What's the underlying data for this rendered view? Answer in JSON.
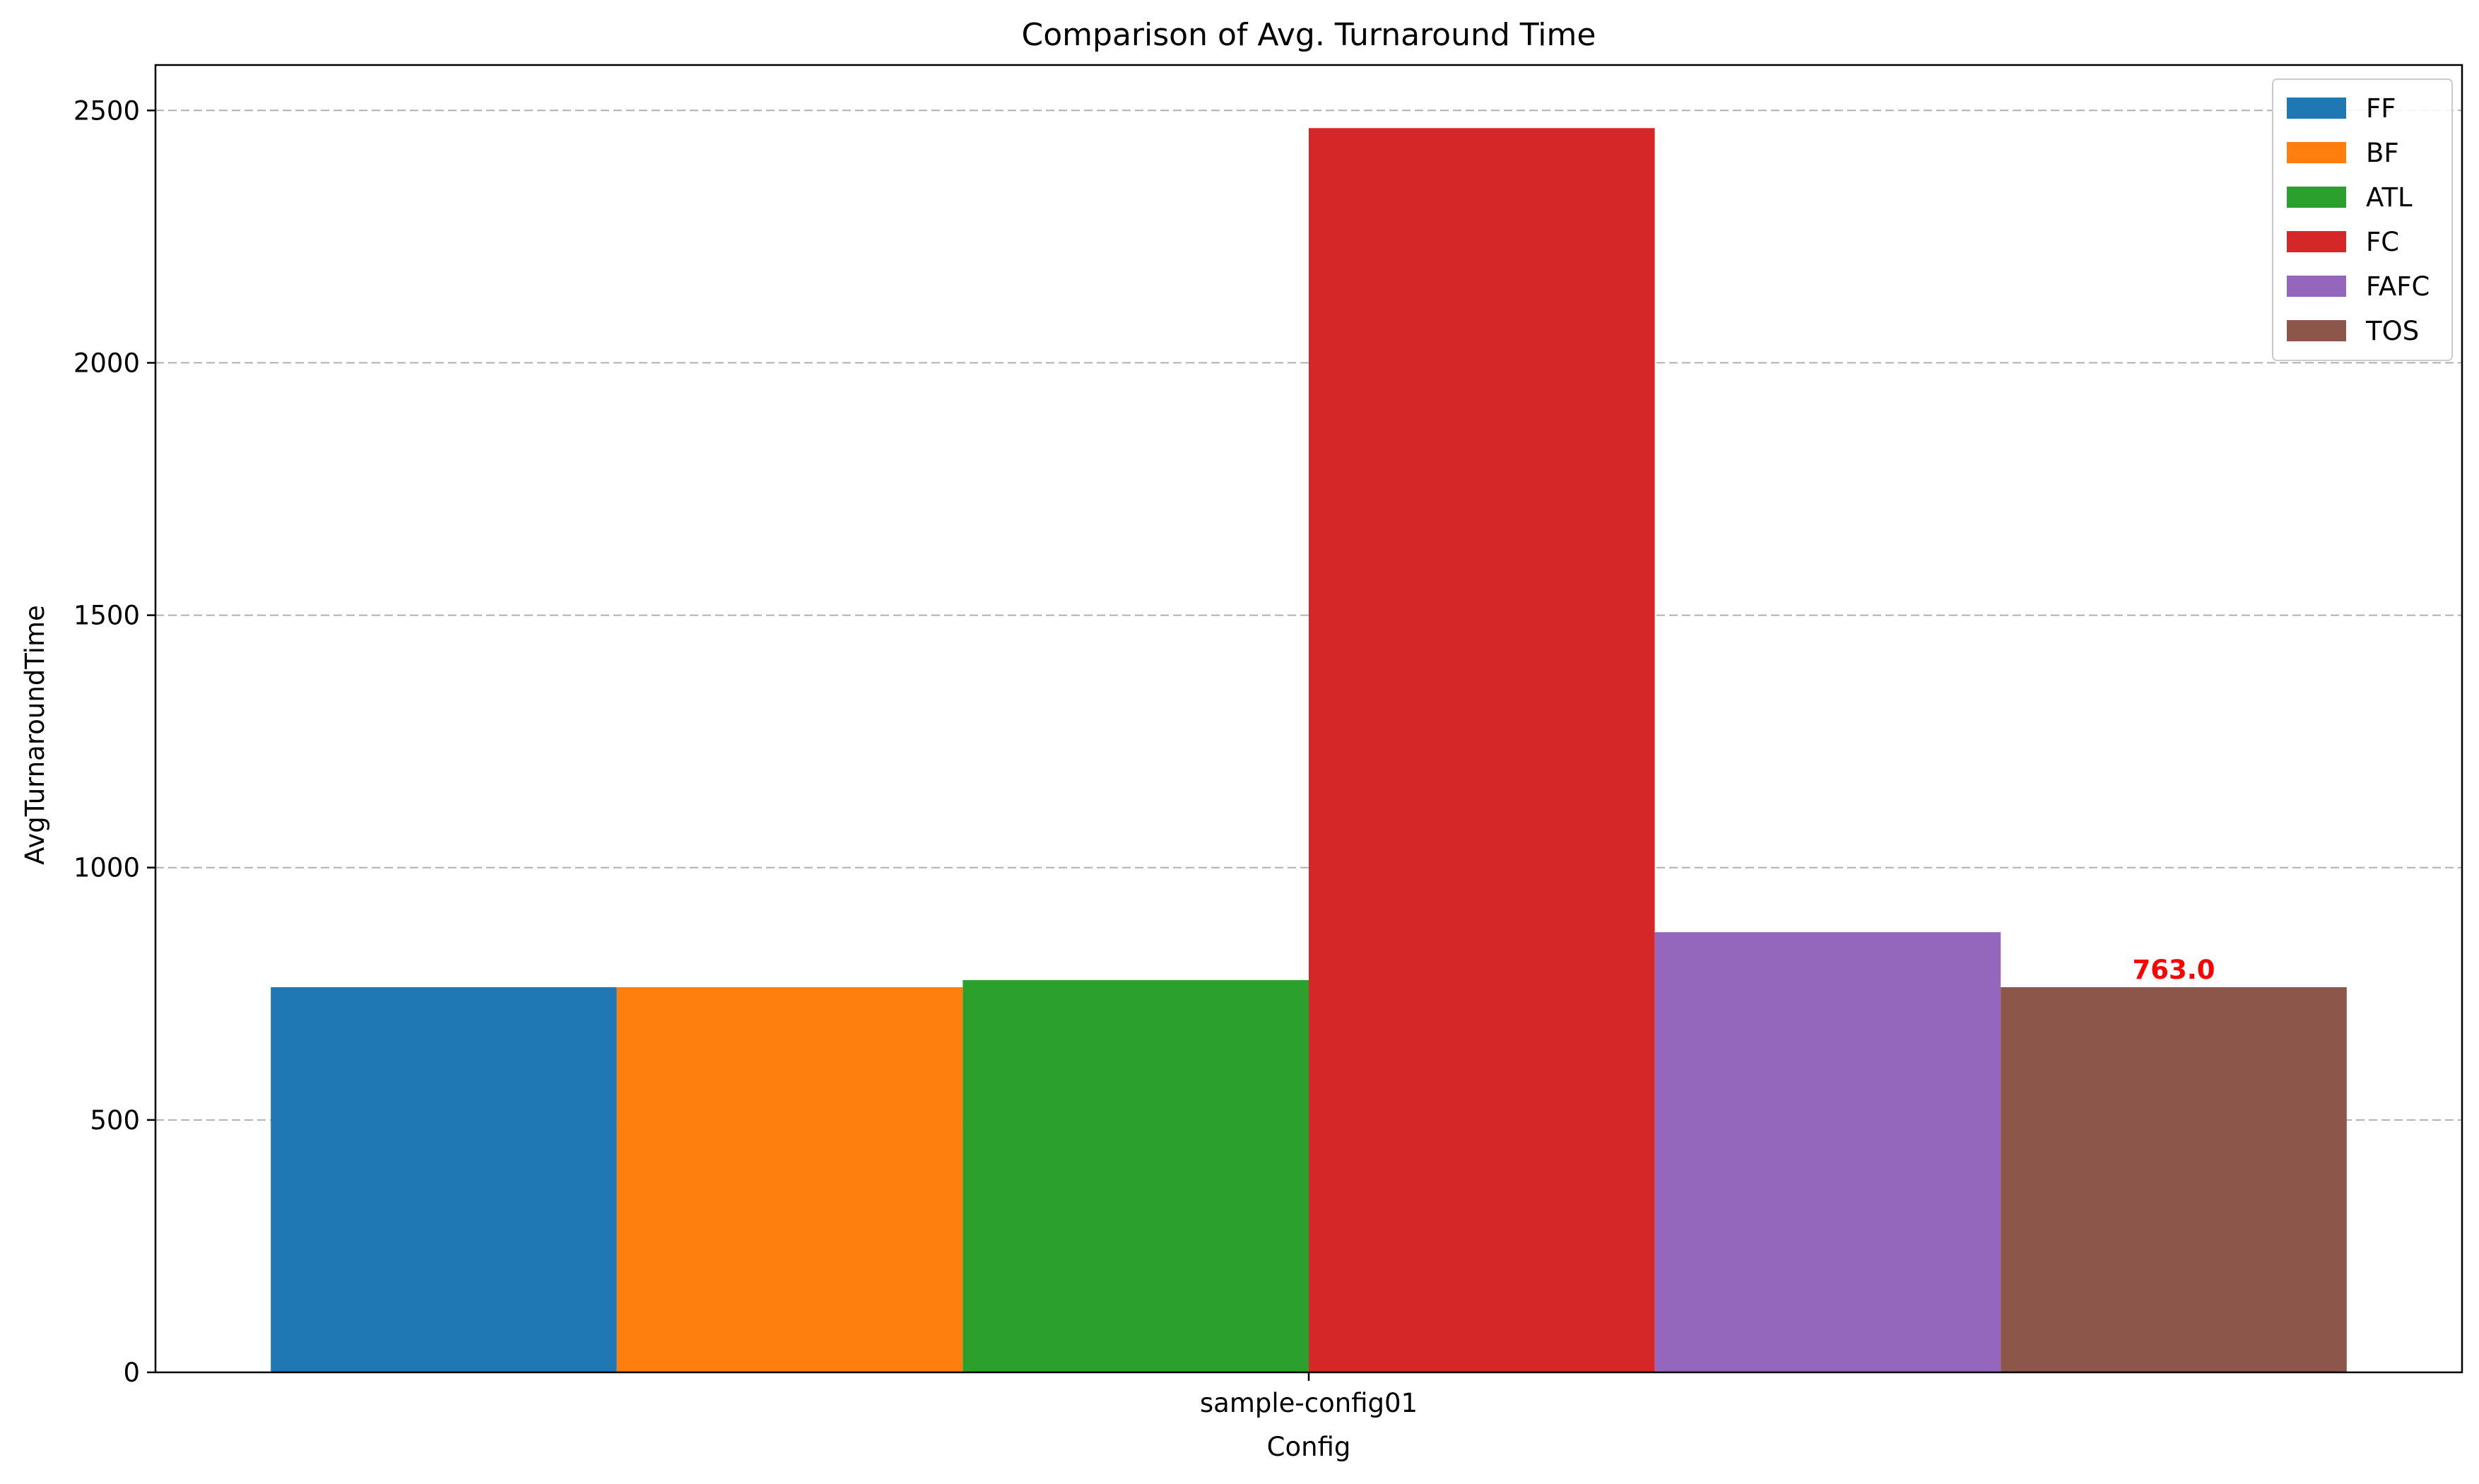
{
  "chart_data": {
    "type": "bar",
    "title": "Comparison of Avg. Turnaround Time",
    "xlabel": "Config",
    "ylabel": "AvgTurnaroundTime",
    "categories": [
      "sample-config01"
    ],
    "ylim": [
      0,
      2590
    ],
    "yticks": [
      0,
      500,
      1000,
      1500,
      2000,
      2500
    ],
    "grid": "y-dashed",
    "legend_position": "top-right",
    "series": [
      {
        "name": "FF",
        "values": [
          763
        ],
        "color": "#1f77b4"
      },
      {
        "name": "BF",
        "values": [
          763
        ],
        "color": "#ff7f0e"
      },
      {
        "name": "ATL",
        "values": [
          777
        ],
        "color": "#2ca02c"
      },
      {
        "name": "FC",
        "values": [
          2465
        ],
        "color": "#d62728"
      },
      {
        "name": "FAFC",
        "values": [
          872
        ],
        "color": "#9467bd"
      },
      {
        "name": "TOS",
        "values": [
          763
        ],
        "color": "#8c564b"
      }
    ],
    "annotations": [
      {
        "series": "TOS",
        "category": "sample-config01",
        "text": "763.0",
        "color": "#ff0000"
      }
    ]
  }
}
